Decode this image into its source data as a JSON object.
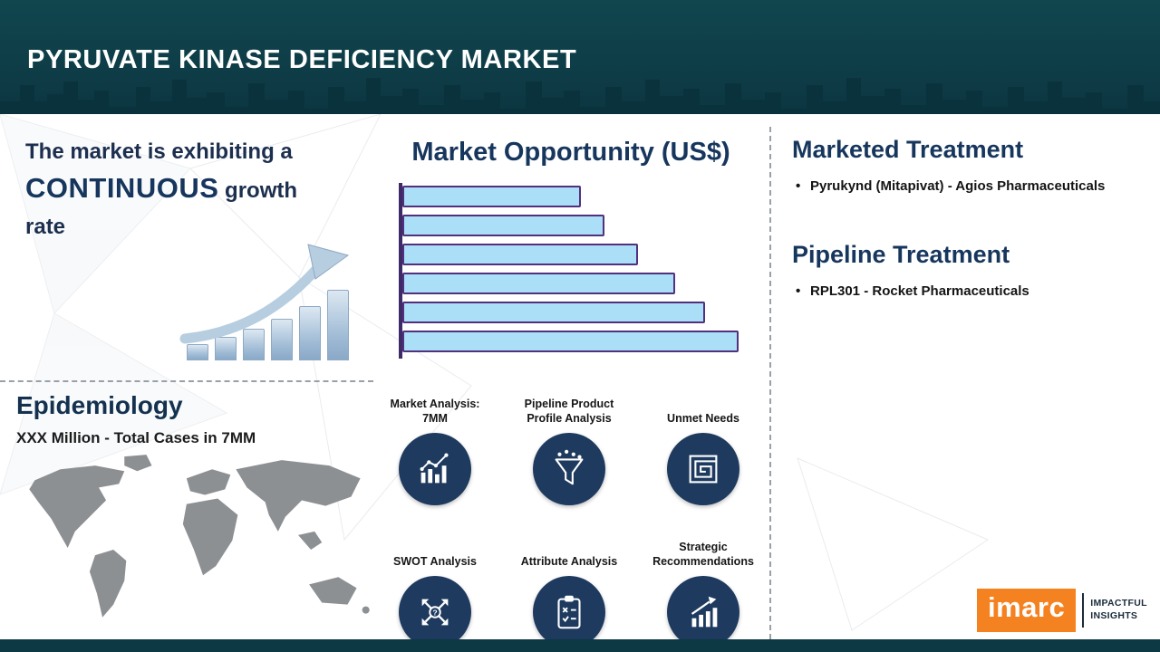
{
  "header": {
    "title": "PYRUVATE KINASE DEFICIENCY MARKET"
  },
  "left": {
    "intro": {
      "prefix": "The market is exhibiting a",
      "highlight": "CONTINUOUS",
      "suffix": " growth rate"
    }
  },
  "epidemiology": {
    "title": "Epidemiology",
    "stat": "XXX Million - Total Cases in 7MM"
  },
  "center": {
    "chart_title": "Market Opportunity (US$)",
    "features": [
      {
        "label": "Market Analysis: 7MM",
        "icon": "bar-chart-icon"
      },
      {
        "label": "Pipeline Product Profile Analysis",
        "icon": "funnel-icon"
      },
      {
        "label": "Unmet Needs",
        "icon": "maze-icon"
      },
      {
        "label": "SWOT Analysis",
        "icon": "swot-arrows-icon"
      },
      {
        "label": "Attribute Analysis",
        "icon": "clipboard-icon"
      },
      {
        "label": "Strategic Recommendations",
        "icon": "growth-chart-icon"
      }
    ]
  },
  "right": {
    "marketed": {
      "title": "Marketed Treatment",
      "items": [
        "Pyrukynd (Mitapivat) - Agios Pharmaceuticals"
      ]
    },
    "pipeline": {
      "title": "Pipeline Treatment",
      "items": [
        "RPL301 -  Rocket Pharmaceuticals"
      ]
    }
  },
  "logo": {
    "brand": "imarc",
    "tagline_line1": "IMPACTFUL",
    "tagline_line2": "INSIGHTS"
  },
  "colors": {
    "header_teal": "#0E3D47",
    "heading_blue": "#17365D",
    "bar_fill": "#ABDFF7",
    "bar_border": "#52307E",
    "icon_circle_navy": "#1E3A5F",
    "accent_orange": "#F58220",
    "map_gray": "#8D9093"
  },
  "chart_data": {
    "type": "bar",
    "orientation": "horizontal",
    "title": "Market Opportunity (US$)",
    "categories": [
      "",
      "",
      "",
      "",
      "",
      ""
    ],
    "values_relative": [
      53,
      60,
      70,
      81,
      90,
      100
    ],
    "ylim": [
      0,
      100
    ],
    "note": "6 unlabeled bars increasing in length top to bottom; lengths estimated as percent of the longest bar; no axis tick labels shown"
  }
}
